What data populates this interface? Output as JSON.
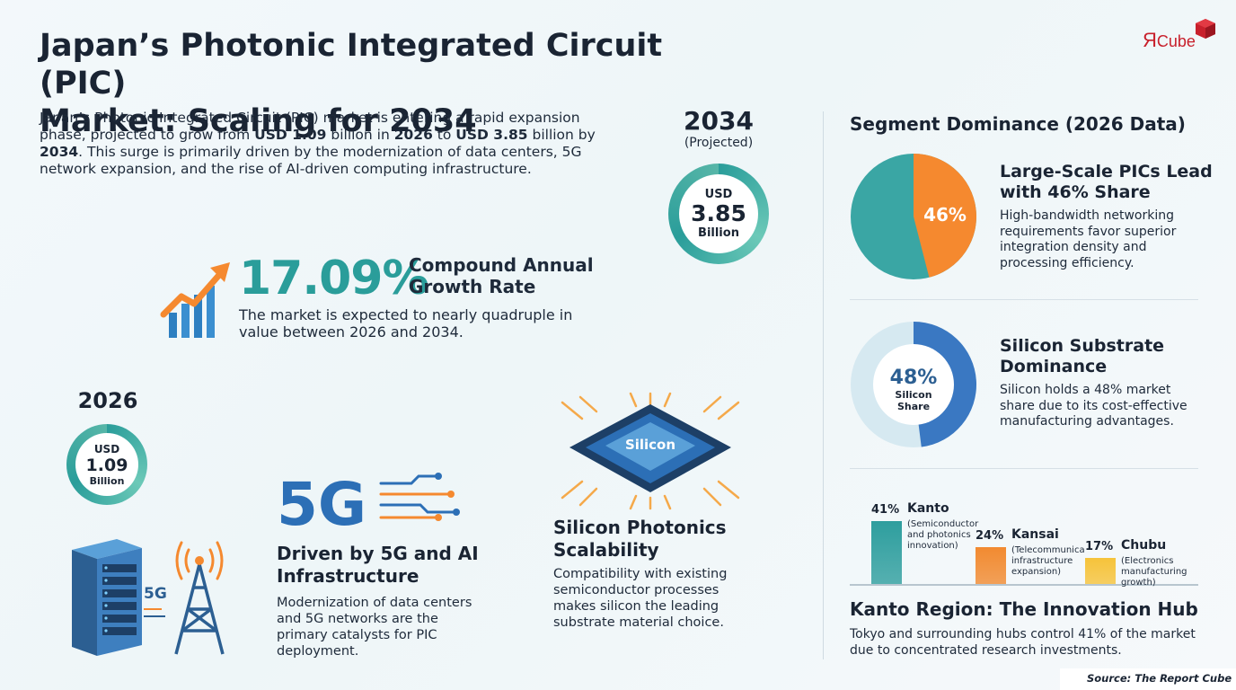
{
  "header": {
    "title_line1": "Japan’s Photonic Integrated Circuit (PIC)",
    "title_line2": "Market: Scaling for 2034",
    "intro": {
      "p1": "Japan’s Photonic Integrated Circuit (PIC) market is entering a rapid expansion phase, projected to grow from ",
      "b1": "USD 1.09",
      "p2": " billion in ",
      "b2": "2026",
      "p3": " to ",
      "b3": "USD 3.85",
      "p4": " billion by ",
      "b4": "2034",
      "p5": ". This surge is primarily driven by the modernization of data centers, 5G network expansion, and the rise of AI-driven computing infrastructure."
    }
  },
  "logo": {
    "prefix": "Я",
    "suffix": "Cube",
    "color": "#c8202c"
  },
  "projection_2034": {
    "year": "2034",
    "note": "(Projected)",
    "currency": "USD",
    "value": "3.85",
    "unit": "Billion"
  },
  "base_2026": {
    "year": "2026",
    "currency": "USD",
    "value": "1.09",
    "unit": "Billion"
  },
  "cagr": {
    "value": "17.09%",
    "label": "Compound Annual Growth Rate",
    "description": "The market is expected to nearly quadruple in value between 2026 and 2034."
  },
  "drivers": {
    "icon_5g_text": "5G",
    "tower_label": "5G",
    "heading": "Driven by 5G and AI Infrastructure",
    "text": "Modernization of data centers and 5G networks are the primary catalysts for PIC deployment."
  },
  "silicon": {
    "chip_label": "Silicon",
    "heading": "Silicon Photonics Scalability",
    "text": "Compatibility with existing semiconductor processes makes silicon the leading substrate material choice."
  },
  "segments": {
    "title": "Segment Dominance (2026 Data)",
    "large_scale": {
      "pie_label": "46%",
      "share": 0.46,
      "heading": "Large-Scale PICs Lead with 46% Share",
      "text": "High-bandwidth networking requirements favor superior integration density and processing efficiency."
    },
    "silicon_substrate": {
      "donut_value": "48%",
      "donut_label": "Silicon Share",
      "share": 0.48,
      "heading": "Silicon Substrate Dominance",
      "text": "Silicon holds a 48% market share due to its cost-effective manufacturing advantages."
    }
  },
  "regions": {
    "bars": [
      {
        "pct": "41%",
        "value": 41,
        "name": "Kanto",
        "note": "(Semiconductor and photonics innovation)",
        "color": "#2e9e9e"
      },
      {
        "pct": "24%",
        "value": 24,
        "name": "Kansai",
        "note": "(Telecommunica infrastructure expansion)",
        "color": "#f28a30"
      },
      {
        "pct": "17%",
        "value": 17,
        "name": "Chubu",
        "note": "(Electronics manufacturing growth)",
        "color": "#f6c33a"
      }
    ],
    "heading": "Kanto Region: The Innovation Hub",
    "text": "Tokyo and surrounding hubs control 41% of the market due to concentrated research investments."
  },
  "footer": {
    "source": "Source: The Report Cube"
  },
  "colors": {
    "teal": "#2a9d9a",
    "orange": "#f5892f",
    "blue": "#3a78c2",
    "navy": "#1a2433"
  }
}
